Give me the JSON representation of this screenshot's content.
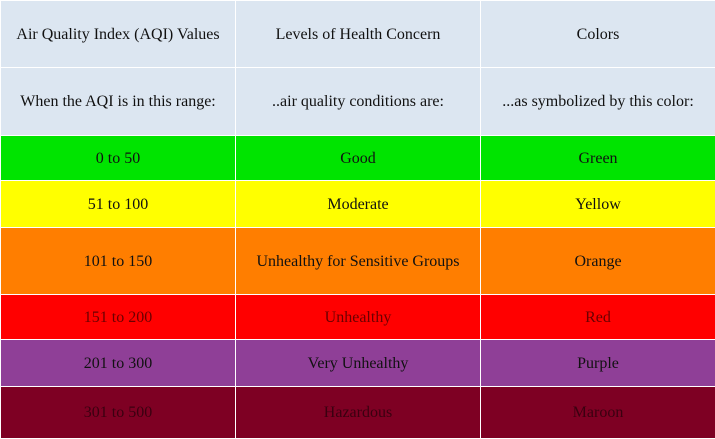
{
  "header": {
    "col1": "Air Quality Index (AQI) Values",
    "col2": "Levels of Health Concern",
    "col3": "Colors"
  },
  "subheader": {
    "col1": "When the AQI is in this range:",
    "col2": "..air quality conditions are:",
    "col3": "...as symbolized by this color:"
  },
  "rows": [
    {
      "range": "0 to 50",
      "level": "Good",
      "color": "Green",
      "bg": "#00e400",
      "fg": "#111111"
    },
    {
      "range": "51 to 100",
      "level": "Moderate",
      "color": "Yellow",
      "bg": "#ffff00",
      "fg": "#111111"
    },
    {
      "range": "101 to 150",
      "level": "Unhealthy for Sensitive Groups",
      "color": "Orange",
      "bg": "#ff7e00",
      "fg": "#111111"
    },
    {
      "range": "151 to 200",
      "level": "Unhealthy",
      "color": "Red",
      "bg": "#ff0000",
      "fg": "#6b0000"
    },
    {
      "range": "201 to 300",
      "level": "Very Unhealthy",
      "color": "Purple",
      "bg": "#8f3f97",
      "fg": "#111111"
    },
    {
      "range": "301 to 500",
      "level": "Hazardous",
      "color": "Maroon",
      "bg": "#7e0023",
      "fg": "#3a0010"
    }
  ]
}
